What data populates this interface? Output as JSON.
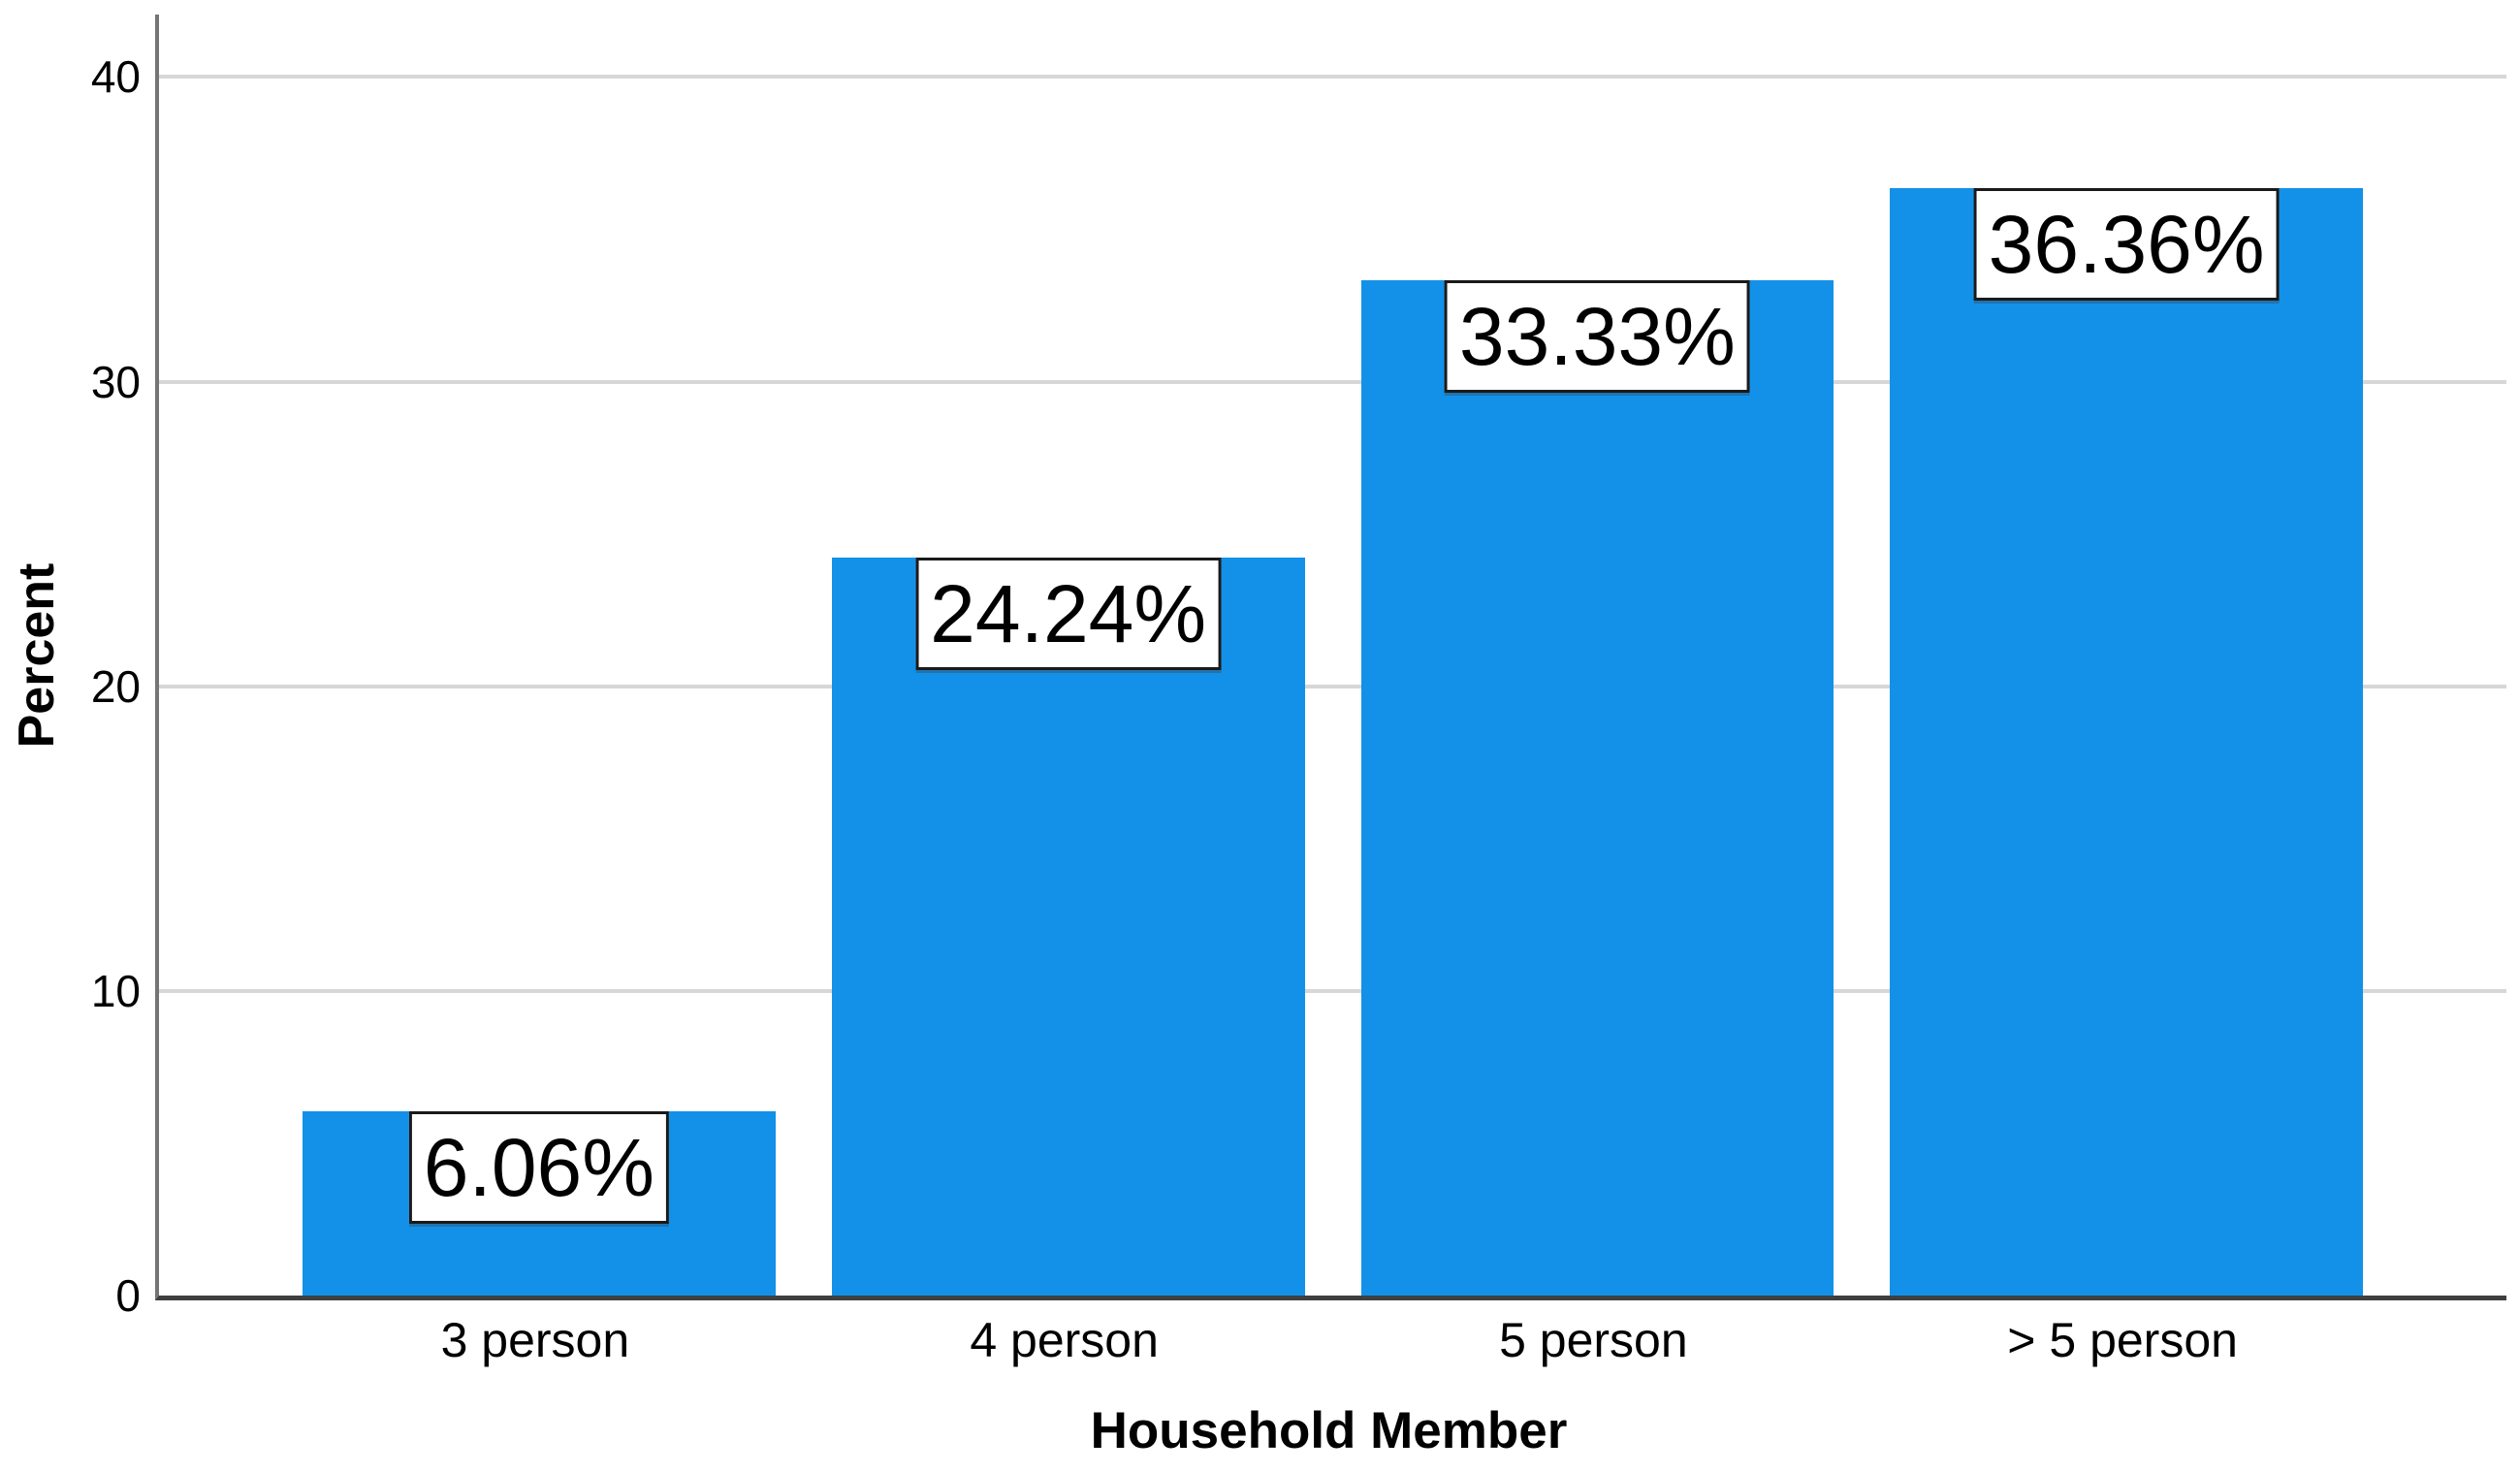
{
  "chart_data": {
    "type": "bar",
    "title": "",
    "categories": [
      "3 person",
      "4 person",
      "5 person",
      "> 5 person"
    ],
    "values": [
      6.06,
      24.24,
      33.33,
      36.36
    ],
    "data_labels": [
      "6.06%",
      "24.24%",
      "33.33%",
      "36.36%"
    ],
    "xlabel": "Household Member",
    "ylabel": "Percent",
    "yticks": [
      0,
      10,
      20,
      30,
      40
    ],
    "ylim": [
      0,
      42.05
    ],
    "grid": "horizontal-only",
    "legend": "none",
    "bar_color": "#1391E8",
    "gridline_color": "#D7D7D7",
    "axis_line_color": "#757575",
    "baseline_color": "#3F3F3F",
    "label_box": {
      "background": "#FFFFFF",
      "border_color": "#1A1A1A",
      "text_color": "#000000"
    }
  }
}
